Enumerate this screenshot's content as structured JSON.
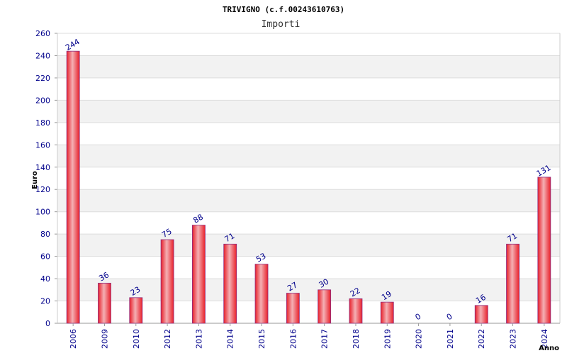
{
  "chart_data": {
    "type": "bar",
    "title": "TRIVIGNO (c.f.00243610763)",
    "subtitle": "Importi",
    "xlabel": "Anno",
    "ylabel": "Euro",
    "ylim": [
      0,
      260
    ],
    "yticks": [
      0,
      20,
      40,
      60,
      80,
      100,
      120,
      140,
      160,
      180,
      200,
      220,
      240,
      260
    ],
    "grid": true,
    "categories": [
      "2006",
      "2009",
      "2010",
      "2012",
      "2013",
      "2014",
      "2015",
      "2016",
      "2017",
      "2018",
      "2019",
      "2020",
      "2021",
      "2022",
      "2023",
      "2024"
    ],
    "values": [
      244,
      36,
      23,
      75,
      88,
      71,
      53,
      27,
      30,
      22,
      19,
      0,
      0,
      16,
      71,
      131
    ],
    "colors": {
      "bar": "#e8202a",
      "bar_highlight": "#f4b0b4",
      "bar_edge": "#8e2a7e",
      "band": "#f2f2f2",
      "grid": "#dddddd",
      "tick": "#00008b"
    }
  }
}
